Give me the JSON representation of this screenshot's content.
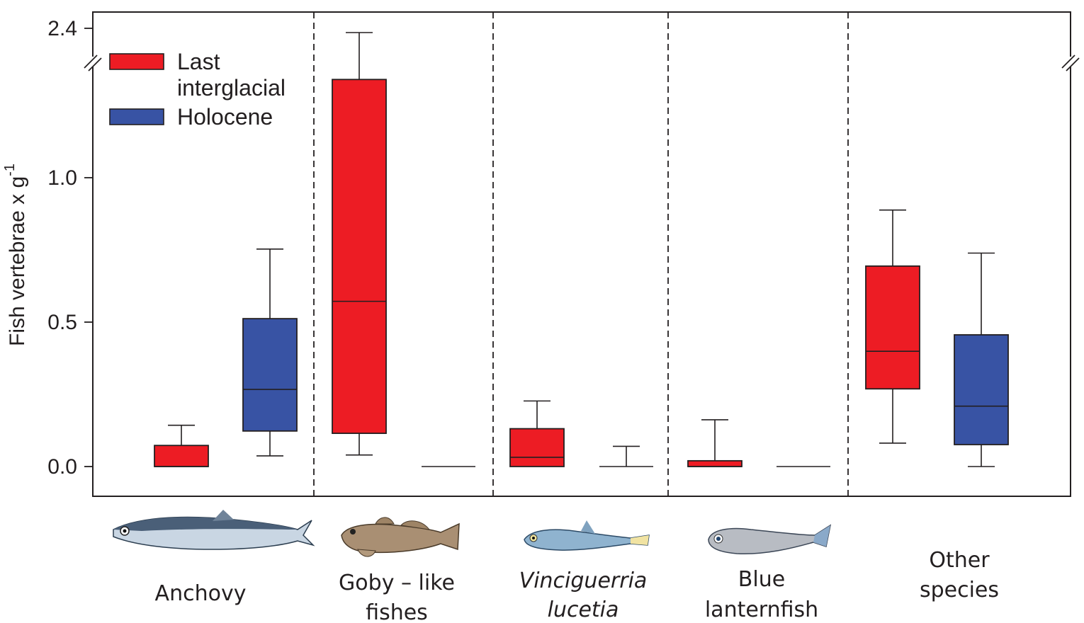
{
  "chart_data": {
    "type": "box",
    "ylabel": "Fish vertebrae x g",
    "ylabel_superscript": "-1",
    "y_axis": {
      "ticks": [
        {
          "value": 0.0,
          "label": "0.0"
        },
        {
          "value": 0.5,
          "label": "0.5"
        },
        {
          "value": 1.0,
          "label": "1.0"
        },
        {
          "value": 2.4,
          "label": "2.4"
        }
      ],
      "break_between": [
        1.35,
        2.3
      ],
      "lower_range": [
        -0.1,
        1.35
      ],
      "upper_range": [
        2.3,
        2.45
      ]
    },
    "legend": {
      "placement": "top-left",
      "entries": [
        {
          "name_lines": [
            "Last",
            "interglacial"
          ],
          "color": "#ed1c24"
        },
        {
          "name_lines": [
            "Holocene"
          ],
          "color": "#3853a4"
        }
      ]
    },
    "categories": [
      {
        "label_lines": [
          "Anchovy"
        ],
        "italic": false
      },
      {
        "label_lines": [
          "Goby – like",
          "fishes"
        ],
        "italic": false
      },
      {
        "label_lines": [
          "Vinciguerria",
          "lucetia"
        ],
        "italic": true
      },
      {
        "label_lines": [
          "Blue",
          "lanternfish"
        ],
        "italic": false
      },
      {
        "label_lines": [
          "Other",
          "species"
        ],
        "italic": false
      }
    ],
    "series": [
      {
        "name": "Last interglacial",
        "color": "#ed1c24",
        "boxes": [
          {
            "category": "Anchovy",
            "whisker_low": 0.0,
            "q1": 0.0,
            "median": 0.0,
            "q3": 0.073,
            "whisker_high": 0.143
          },
          {
            "category": "Goby – like fishes",
            "whisker_low": 0.04,
            "q1": 0.115,
            "median": 0.572,
            "q3": 1.34,
            "whisker_high": 2.36
          },
          {
            "category": "Vinciguerria lucetia",
            "whisker_low": 0.0,
            "q1": 0.0,
            "median": 0.032,
            "q3": 0.131,
            "whisker_high": 0.227
          },
          {
            "category": "Blue lanternfish",
            "whisker_low": 0.0,
            "q1": 0.0,
            "median": 0.0,
            "q3": 0.02,
            "whisker_high": 0.162
          },
          {
            "category": "Other species",
            "whisker_low": 0.081,
            "q1": 0.269,
            "median": 0.399,
            "q3": 0.694,
            "whisker_high": 0.888
          }
        ]
      },
      {
        "name": "Holocene",
        "color": "#3853a4",
        "boxes": [
          {
            "category": "Anchovy",
            "whisker_low": 0.037,
            "q1": 0.123,
            "median": 0.267,
            "q3": 0.512,
            "whisker_high": 0.753
          },
          {
            "category": "Goby – like fishes",
            "whisker_low": 0.0,
            "q1": 0.0,
            "median": 0.0,
            "q3": 0.0,
            "whisker_high": 0.0
          },
          {
            "category": "Vinciguerria lucetia",
            "whisker_low": 0.0,
            "q1": 0.0,
            "median": 0.0,
            "q3": 0.0,
            "whisker_high": 0.07
          },
          {
            "category": "Blue lanternfish",
            "whisker_low": 0.0,
            "q1": 0.0,
            "median": 0.0,
            "q3": 0.0,
            "whisker_high": 0.0
          },
          {
            "category": "Other species",
            "whisker_low": 0.0,
            "q1": 0.076,
            "median": 0.209,
            "q3": 0.456,
            "whisker_high": 0.739
          }
        ]
      }
    ],
    "icons": [
      "anchovy-icon",
      "goby-icon",
      "vinciguerria-icon",
      "lanternfish-icon"
    ],
    "grid": false
  }
}
